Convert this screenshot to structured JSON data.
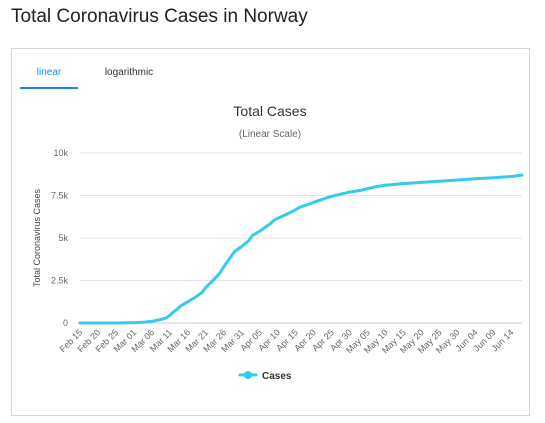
{
  "page": {
    "title": "Total Coronavirus Cases in Norway"
  },
  "tabs": [
    {
      "label": "linear",
      "active": true
    },
    {
      "label": "logarithmic",
      "active": false
    }
  ],
  "colors": {
    "series": "#33ccee",
    "tab_active": "#1e88e5",
    "grid": "#e6e6e6"
  },
  "chart_data": {
    "type": "line",
    "title": "Total Cases",
    "subtitle": "(Linear Scale)",
    "xlabel": "",
    "ylabel": "Total Coronavirus Cases",
    "ylim": [
      0,
      10000
    ],
    "yticks": [
      0,
      2500,
      5000,
      7500,
      10000
    ],
    "ytick_labels": [
      "0",
      "2.5k",
      "5k",
      "7.5k",
      "10k"
    ],
    "xtick_labels": [
      "Feb 15",
      "Feb 20",
      "Feb 25",
      "Mar 01",
      "Mar 06",
      "Mar 11",
      "Mar 16",
      "Mar 21",
      "Mar 26",
      "Mar 31",
      "Apr 05",
      "Apr 10",
      "Apr 15",
      "Apr 20",
      "Apr 25",
      "Apr 30",
      "May 05",
      "May 10",
      "May 15",
      "May 20",
      "May 25",
      "May 30",
      "Jun 04",
      "Jun 09",
      "Jun 14"
    ],
    "grid": true,
    "legend_position": "bottom-center",
    "series": [
      {
        "name": "Cases",
        "x": [
          "Feb 15",
          "Feb 20",
          "Feb 25",
          "Feb 28",
          "Mar 01",
          "Mar 04",
          "Mar 06",
          "Mar 08",
          "Mar 10",
          "Mar 11",
          "Mar 12",
          "Mar 13",
          "Mar 14",
          "Mar 16",
          "Mar 18",
          "Mar 20",
          "Mar 21",
          "Mar 23",
          "Mar 25",
          "Mar 26",
          "Mar 27",
          "Mar 28",
          "Mar 29",
          "Mar 31",
          "Apr 02",
          "Apr 03",
          "Apr 05",
          "Apr 07",
          "Apr 08",
          "Apr 09",
          "Apr 10",
          "Apr 12",
          "Apr 14",
          "Apr 15",
          "Apr 16",
          "Apr 18",
          "Apr 20",
          "Apr 22",
          "Apr 25",
          "Apr 28",
          "Apr 30",
          "May 03",
          "May 05",
          "May 08",
          "May 10",
          "May 15",
          "May 20",
          "May 25",
          "May 30",
          "Jun 04",
          "Jun 09",
          "Jun 14",
          "Jun 17"
        ],
        "values": [
          0,
          0,
          0,
          10,
          20,
          50,
          100,
          180,
          300,
          450,
          650,
          800,
          1000,
          1250,
          1500,
          1800,
          2100,
          2500,
          2950,
          3300,
          3600,
          3900,
          4200,
          4500,
          4850,
          5150,
          5400,
          5700,
          5850,
          6050,
          6150,
          6350,
          6550,
          6650,
          6800,
          6950,
          7100,
          7250,
          7450,
          7600,
          7700,
          7800,
          7900,
          8050,
          8100,
          8200,
          8270,
          8340,
          8410,
          8480,
          8550,
          8620,
          8700
        ]
      }
    ]
  }
}
